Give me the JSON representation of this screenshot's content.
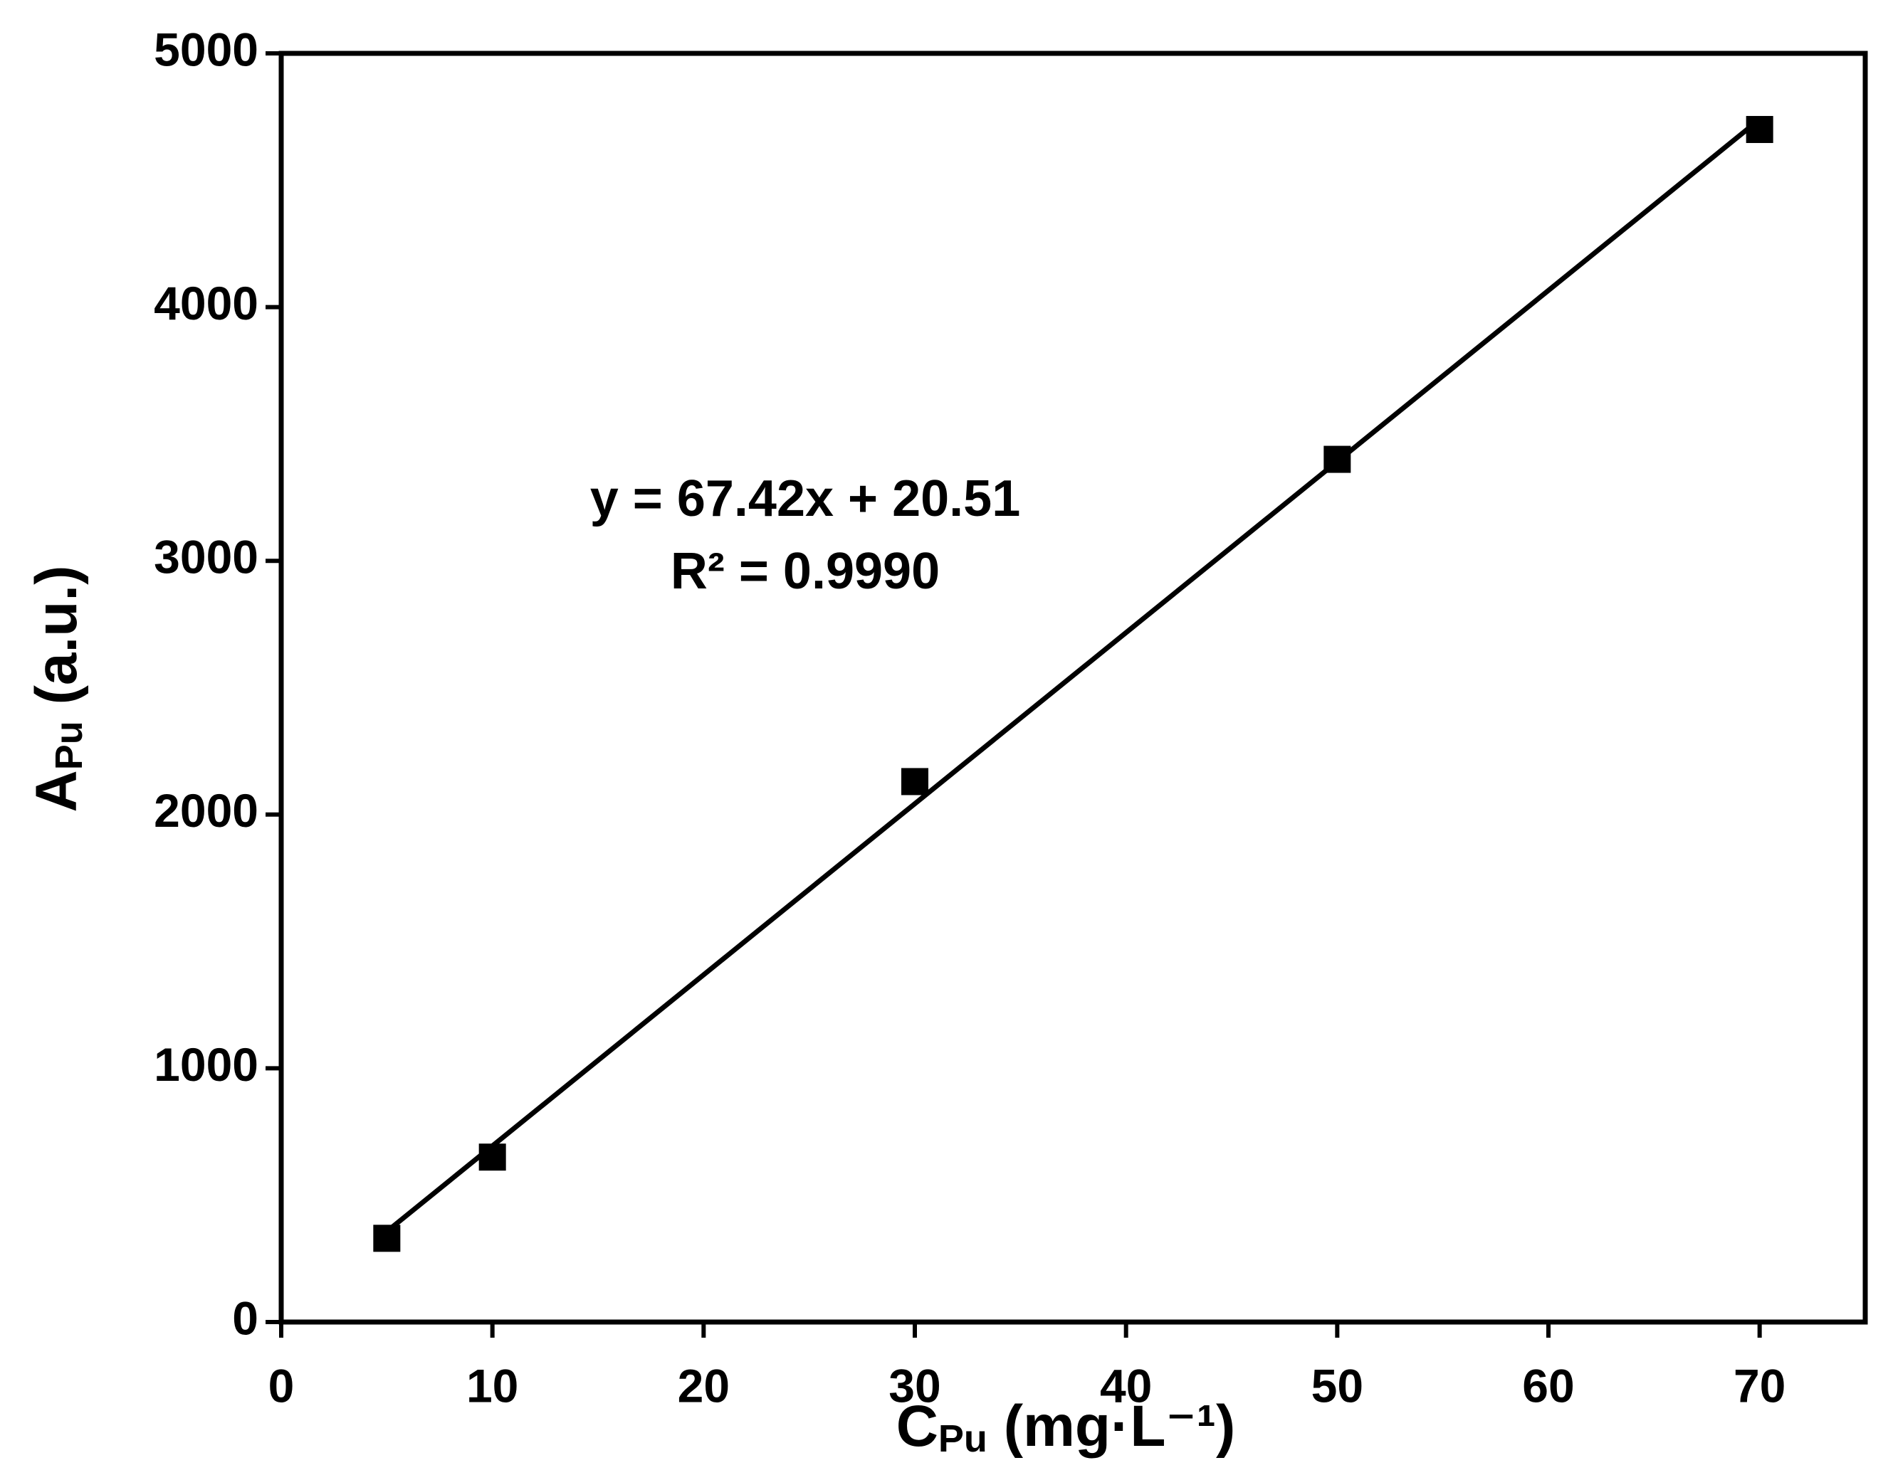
{
  "chart_data": {
    "type": "scatter",
    "x_label": {
      "main": "C",
      "sub": "Pu",
      "rest": " (mg·L⁻¹)"
    },
    "y_label": {
      "main": "A",
      "sub": "Pu",
      "rest": " (a.u.)"
    },
    "annotations": [
      "y = 67.42x + 20.51",
      "R² = 0.9990"
    ],
    "x": [
      5,
      10,
      30,
      50,
      70
    ],
    "values": [
      330,
      650,
      2130,
      3400,
      4700
    ],
    "color": "#000000",
    "fit": {
      "x": [
        5,
        70
      ],
      "values": [
        357,
        4740
      ]
    },
    "xlim": [
      0,
      75
    ],
    "ylim": [
      0,
      5000
    ],
    "xticks": [
      0,
      10,
      20,
      30,
      40,
      50,
      60,
      70
    ],
    "yticks": [
      0,
      1000,
      2000,
      3000,
      4000,
      5000
    ],
    "grid": false
  }
}
